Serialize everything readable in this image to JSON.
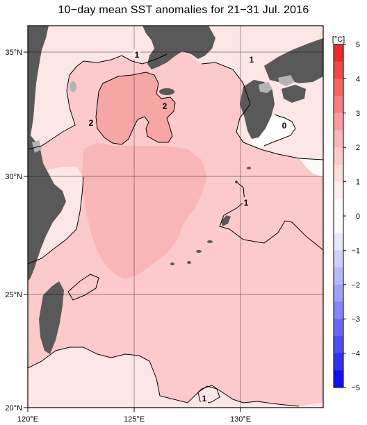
{
  "title": "10−day mean SST anomalies for 21−31 Jul. 2016",
  "map": {
    "lat_labels": [
      "35°N",
      "30°N",
      "25°N",
      "20°N"
    ],
    "lon_labels": [
      "120°E",
      "125°E",
      "130°E"
    ],
    "contour_labels": [
      "1",
      "1",
      "2",
      "2",
      "0",
      "1",
      "1"
    ],
    "land_color": "#595959",
    "ice_or_missing_color": "#b4b4b4"
  },
  "colorbar": {
    "unit": "[°C]",
    "tick_labels": [
      "5",
      "4",
      "3",
      "2",
      "1",
      "0",
      "−1",
      "−2",
      "−3",
      "−4",
      "−5"
    ],
    "colors_top_to_bottom": [
      "#f02828",
      "#f44848",
      "#f76464",
      "#f98080",
      "#fb9c9c",
      "#fdb4b4",
      "#fecaca",
      "#ffdede",
      "#ffeeee",
      "#fffafa",
      "#fbfbff",
      "#e8e8ff",
      "#d0d0ff",
      "#b8b8ff",
      "#a0a0ff",
      "#8484ff",
      "#6868ff",
      "#4c4cff",
      "#3030ff",
      "#1010ff"
    ]
  }
}
